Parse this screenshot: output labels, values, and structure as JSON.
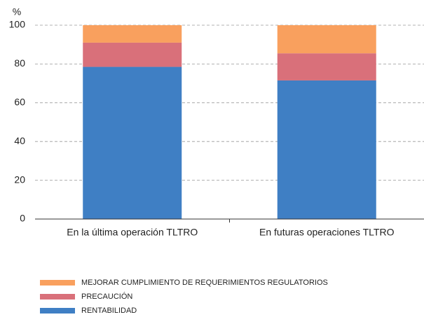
{
  "chart_data": {
    "type": "stacked_bar",
    "y_label": "%",
    "categories": [
      "En la última operación TLTRO",
      "En futuras operaciones TLTRO"
    ],
    "series": [
      {
        "name": "RENTABILIDAD",
        "color": "#3f7fc4",
        "values": [
          78.5,
          71.5
        ]
      },
      {
        "name": "PRECAUCIÓN",
        "color": "#d9707a",
        "values": [
          12.5,
          14
        ]
      },
      {
        "name": "MEJORAR CUMPLIMIENTO DE REQUERIMIENTOS REGULATORIOS",
        "color": "#f9a05e",
        "values": [
          9,
          14.5
        ]
      }
    ],
    "ylim": [
      0,
      100
    ],
    "yticks": [
      0,
      20,
      40,
      60,
      80,
      100
    ],
    "grid": true
  }
}
